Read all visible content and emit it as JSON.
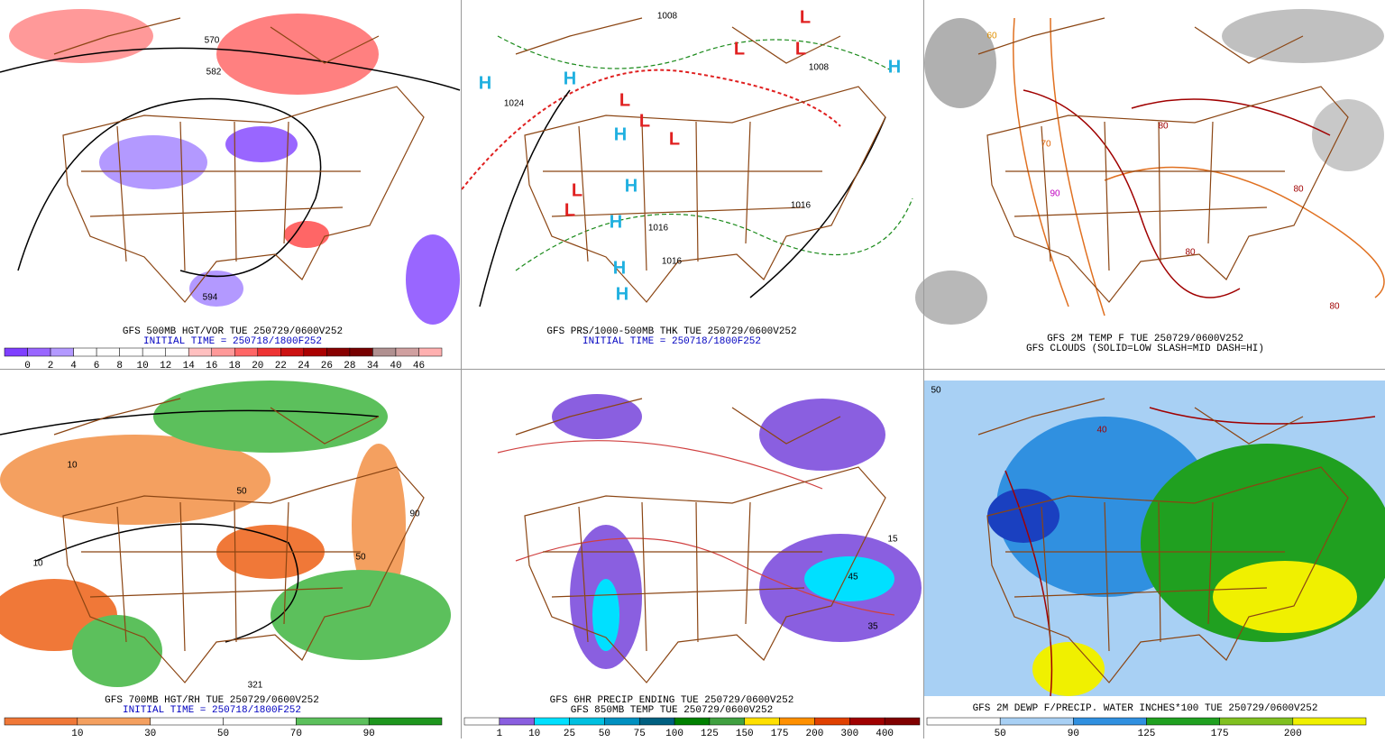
{
  "panels": [
    {
      "captions": [
        {
          "text": "GFS 500MB HGT/VOR TUE 250729/0600V252",
          "color": "#000000"
        },
        {
          "text": "INITIAL TIME = 250718/1800F252",
          "color": "#0000c0"
        }
      ],
      "colorbar": {
        "labels": [
          "0",
          "2",
          "4",
          "6",
          "8",
          "10",
          "12",
          "14",
          "16",
          "18",
          "20",
          "22",
          "24",
          "26",
          "28",
          "34",
          "40",
          "46"
        ],
        "colors": [
          "#7f3fff",
          "#9966ff",
          "#b399ff",
          "#ffffff",
          "#ffffff",
          "#ffffff",
          "#ffffff",
          "#ffffff",
          "#ffc0c0",
          "#ff9999",
          "#ff6666",
          "#ee3333",
          "#cc1111",
          "#aa0000",
          "#880000",
          "#770000",
          "#b09090",
          "#d0a0a0",
          "#ffb0b0"
        ]
      },
      "map_labels": [
        {
          "text": "570",
          "color": "#000000"
        },
        {
          "text": "582",
          "color": "#000000"
        },
        {
          "text": "594",
          "color": "#000000"
        }
      ]
    },
    {
      "captions": [
        {
          "text": "GFS PRS/1000-500MB THK TUE 250729/0600V252",
          "color": "#000000"
        },
        {
          "text": "INITIAL TIME = 250718/1800F252",
          "color": "#0000c0"
        }
      ],
      "map_labels": [
        {
          "text": "H",
          "color": "#20b0e0"
        },
        {
          "text": "1024",
          "color": "#000000"
        },
        {
          "text": "L",
          "color": "#e02020"
        },
        {
          "text": "L",
          "color": "#e02020"
        },
        {
          "text": "L",
          "color": "#e02020"
        },
        {
          "text": "L",
          "color": "#e02020"
        },
        {
          "text": "L",
          "color": "#e02020"
        },
        {
          "text": "L",
          "color": "#e02020"
        },
        {
          "text": "1008",
          "color": "#000000"
        },
        {
          "text": "H",
          "color": "#20b0e0"
        },
        {
          "text": "H",
          "color": "#20b0e0"
        },
        {
          "text": "H",
          "color": "#20b0e0"
        },
        {
          "text": "H",
          "color": "#20b0e0"
        },
        {
          "text": "H",
          "color": "#20b0e0"
        },
        {
          "text": "H",
          "color": "#20b0e0"
        },
        {
          "text": "H",
          "color": "#20b0e0"
        },
        {
          "text": "L",
          "color": "#e02020"
        },
        {
          "text": "L",
          "color": "#e02020"
        },
        {
          "text": "1016",
          "color": "#000000"
        },
        {
          "text": "1016",
          "color": "#000000"
        },
        {
          "text": "1016",
          "color": "#000000"
        },
        {
          "text": "1008",
          "color": "#000000"
        }
      ]
    },
    {
      "captions": [
        {
          "text": "GFS 2M TEMP F TUE 250729/0600V252",
          "color": "#000000"
        },
        {
          "text": "GFS CLOUDS (SOLID=LOW SLASH=MID DASH=HI)",
          "color": "#000000"
        }
      ],
      "map_labels": [
        {
          "text": "80",
          "color": "#a00000"
        },
        {
          "text": "80",
          "color": "#a00000"
        },
        {
          "text": "70",
          "color": "#e06000"
        },
        {
          "text": "90",
          "color": "#c000c0"
        },
        {
          "text": "80",
          "color": "#a00000"
        },
        {
          "text": "60",
          "color": "#e09000"
        },
        {
          "text": "80",
          "color": "#a00000"
        }
      ]
    },
    {
      "captions": [
        {
          "text": "GFS 700MB HGT/RH TUE 250729/0600V252",
          "color": "#000000"
        },
        {
          "text": "INITIAL TIME = 250718/1800F252",
          "color": "#0000c0"
        }
      ],
      "colorbar": {
        "labels": [
          "10",
          "30",
          "50",
          "70",
          "90"
        ],
        "colors": [
          "#f07838",
          "#f4a060",
          "#ffffff",
          "#ffffff",
          "#5cc05c",
          "#1e961e"
        ]
      },
      "map_labels": [
        {
          "text": "10",
          "color": "#000000"
        },
        {
          "text": "50",
          "color": "#000000"
        },
        {
          "text": "10",
          "color": "#000000"
        },
        {
          "text": "321",
          "color": "#000000"
        },
        {
          "text": "90",
          "color": "#000000"
        },
        {
          "text": "50",
          "color": "#000000"
        }
      ]
    },
    {
      "captions": [
        {
          "text": "GFS 6HR PRECIP ENDING TUE 250729/0600V252",
          "color": "#000000"
        },
        {
          "text": "GFS 850MB TEMP TUE 250729/0600V252",
          "color": "#000000"
        }
      ],
      "colorbar": {
        "labels": [
          "1",
          "10",
          "25",
          "50",
          "75",
          "100",
          "125",
          "150",
          "175",
          "200",
          "300",
          "400"
        ],
        "colors": [
          "#ffffff",
          "#8a5fe0",
          "#00e0ff",
          "#00c0e0",
          "#0090c0",
          "#006080",
          "#008000",
          "#40a040",
          "#ffe000",
          "#ff9000",
          "#e04000",
          "#a00000",
          "#800000"
        ]
      },
      "map_labels": [
        {
          "text": "45",
          "color": "#000000"
        },
        {
          "text": "35",
          "color": "#000000"
        },
        {
          "text": "15",
          "color": "#000000"
        }
      ]
    },
    {
      "captions": [
        {
          "text": "GFS 2M DEWP F/PRECIP. WATER INCHES*100 TUE 250729/0600V252",
          "color": "#000000"
        }
      ],
      "colorbar": {
        "labels": [
          "50",
          "90",
          "125",
          "175",
          "200"
        ],
        "colors": [
          "#ffffff",
          "#a8d0f4",
          "#3090e0",
          "#20a020",
          "#80c020",
          "#f0f000"
        ]
      },
      "map_labels": [
        {
          "text": "50",
          "color": "#000000"
        },
        {
          "text": "40",
          "color": "#a00000"
        }
      ]
    }
  ]
}
